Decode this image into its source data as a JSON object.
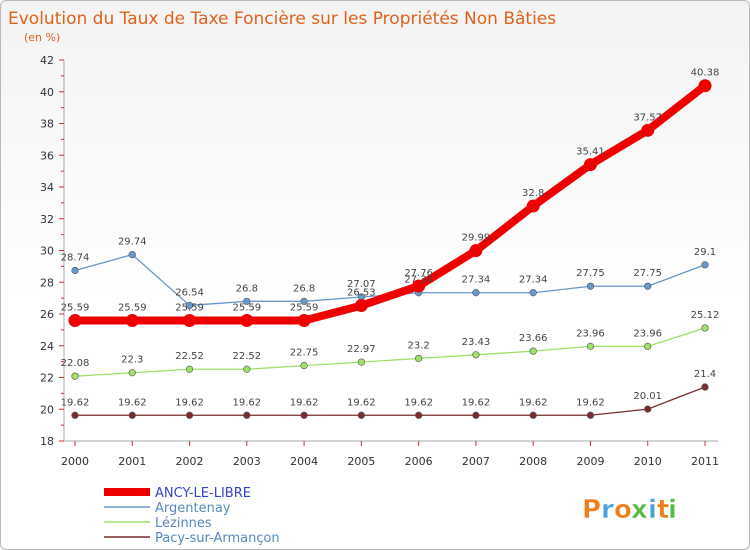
{
  "chart_data": {
    "type": "line",
    "title": "Evolution du Taux de Taxe Foncière sur les Propriétés Non Bâties",
    "subtitle": "(en %)",
    "xlabel": "",
    "ylabel": "",
    "categories": [
      "2000",
      "2001",
      "2002",
      "2003",
      "2004",
      "2005",
      "2006",
      "2007",
      "2008",
      "2009",
      "2010",
      "2011"
    ],
    "ylim": [
      18,
      42
    ],
    "yticks": [
      18,
      20,
      22,
      24,
      26,
      28,
      30,
      32,
      34,
      36,
      38,
      40,
      42
    ],
    "grid": false,
    "legend_position": "bottom-left",
    "series": [
      {
        "name": "Pacy-sur-Armançon",
        "color": "#7a2d2d",
        "values": [
          19.62,
          19.62,
          19.62,
          19.62,
          19.62,
          19.62,
          19.62,
          19.62,
          19.62,
          19.62,
          20.01,
          21.4
        ],
        "labels": [
          "19.62",
          "19.62",
          "19.62",
          "19.62",
          "19.62",
          "19.62",
          "19.62",
          "19.62",
          "19.62",
          "19.62",
          "20.01",
          "21.4"
        ]
      },
      {
        "name": "Lézinnes",
        "color": "#9fe068",
        "values": [
          22.08,
          22.3,
          22.52,
          22.52,
          22.75,
          22.97,
          23.2,
          23.43,
          23.66,
          23.96,
          23.96,
          25.12
        ],
        "labels": [
          "22.08",
          "22.3",
          "22.52",
          "22.52",
          "22.75",
          "22.97",
          "23.2",
          "23.43",
          "23.66",
          "23.96",
          "23.96",
          "25.12"
        ]
      },
      {
        "name": "Argentenay",
        "color": "#6699cc",
        "values": [
          28.74,
          29.74,
          26.54,
          26.8,
          26.8,
          27.07,
          27.34,
          27.34,
          27.34,
          27.75,
          27.75,
          29.1
        ],
        "labels": [
          "28.74",
          "29.74",
          "26.54",
          "26.8",
          "26.8",
          "27.07",
          "27.34",
          "27.34",
          "27.34",
          "27.75",
          "27.75",
          "29.1"
        ]
      },
      {
        "name": "ANCY-LE-LIBRE",
        "color": "#ee0000",
        "values": [
          25.59,
          25.59,
          25.59,
          25.59,
          25.59,
          26.53,
          27.76,
          29.99,
          32.8,
          35.41,
          37.57,
          40.38
        ],
        "labels": [
          "25.59",
          "25.59",
          "25.59",
          "25.59",
          "25.59",
          "26.53",
          "27.76",
          "29.99",
          "32.8",
          "35.41",
          "37.57",
          "40.38"
        ]
      }
    ],
    "legend": [
      "ANCY-LE-LIBRE",
      "Argentenay",
      "Lézinnes",
      "Pacy-sur-Armançon"
    ]
  },
  "logo": {
    "letters": [
      "P",
      "r",
      "o",
      "x",
      "i",
      "t",
      "i"
    ],
    "colors": [
      "#f07f1b",
      "#48a2d9",
      "#f07f1b",
      "#58b947",
      "#48a2d9",
      "#f07f1b",
      "#58b947"
    ]
  }
}
